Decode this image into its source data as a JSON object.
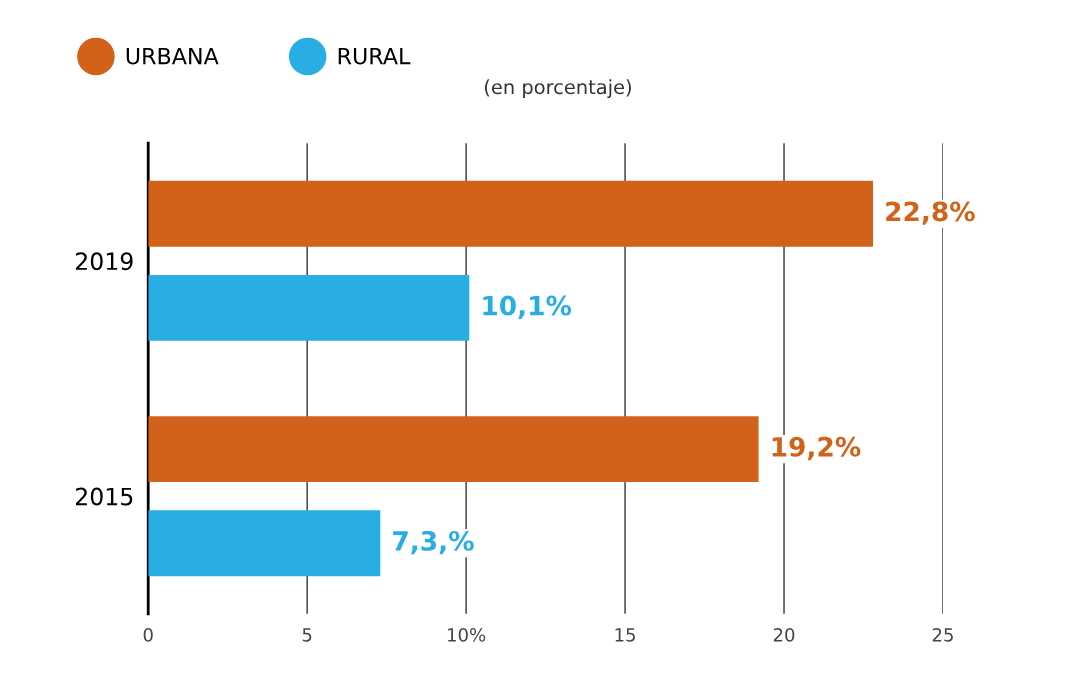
{
  "chart_data": {
    "type": "bar",
    "orientation": "horizontal",
    "categories": [
      "2019",
      "2015"
    ],
    "series": [
      {
        "name": "URBANA",
        "color": "#d2621a",
        "values": [
          22.8,
          19.2
        ],
        "value_labels": [
          "22,8%",
          "19,2%"
        ]
      },
      {
        "name": "RURAL",
        "color": "#29aee3",
        "values": [
          10.1,
          7.3
        ],
        "value_labels": [
          "10,1%",
          "7,3,%"
        ]
      }
    ],
    "xlim": [
      0,
      25
    ],
    "xticks": [
      0,
      5,
      {
        "value": 10,
        "label": "10%"
      },
      15,
      20,
      25
    ],
    "grid": "x",
    "legend": "top left",
    "annotations": [
      "(en porcentaje)"
    ]
  }
}
